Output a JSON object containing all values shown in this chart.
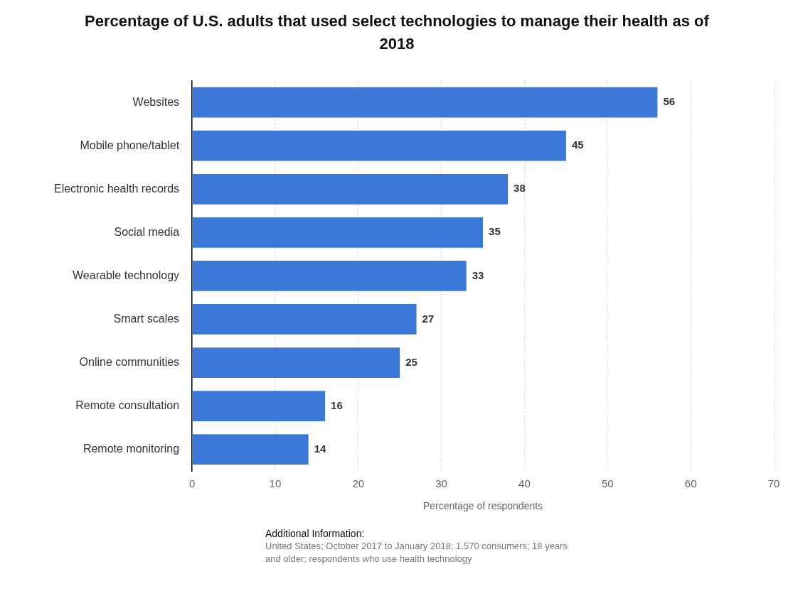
{
  "chart_data": {
    "type": "bar",
    "orientation": "horizontal",
    "title": "Percentage of U.S. adults that used select technologies to manage their health as of 2018",
    "xlabel": "Percentage of respondents",
    "categories": [
      "Websites",
      "Mobile phone/tablet",
      "Electronic health records",
      "Social media",
      "Wearable technology",
      "Smart scales",
      "Online communities",
      "Remote consultation",
      "Remote monitoring"
    ],
    "values": [
      56,
      45,
      38,
      35,
      33,
      27,
      25,
      16,
      14
    ],
    "color": "#3c78d8",
    "xlim": [
      0,
      70
    ],
    "xticks": [
      0,
      10,
      20,
      30,
      40,
      50,
      60,
      70
    ],
    "grid": "x",
    "legend": false,
    "data_labels": true,
    "annotations": [
      "Additional Information:",
      "United States; October 2017 to January 2018; 1,570 consumers; 18 years and older; respondents who use health technology"
    ]
  }
}
